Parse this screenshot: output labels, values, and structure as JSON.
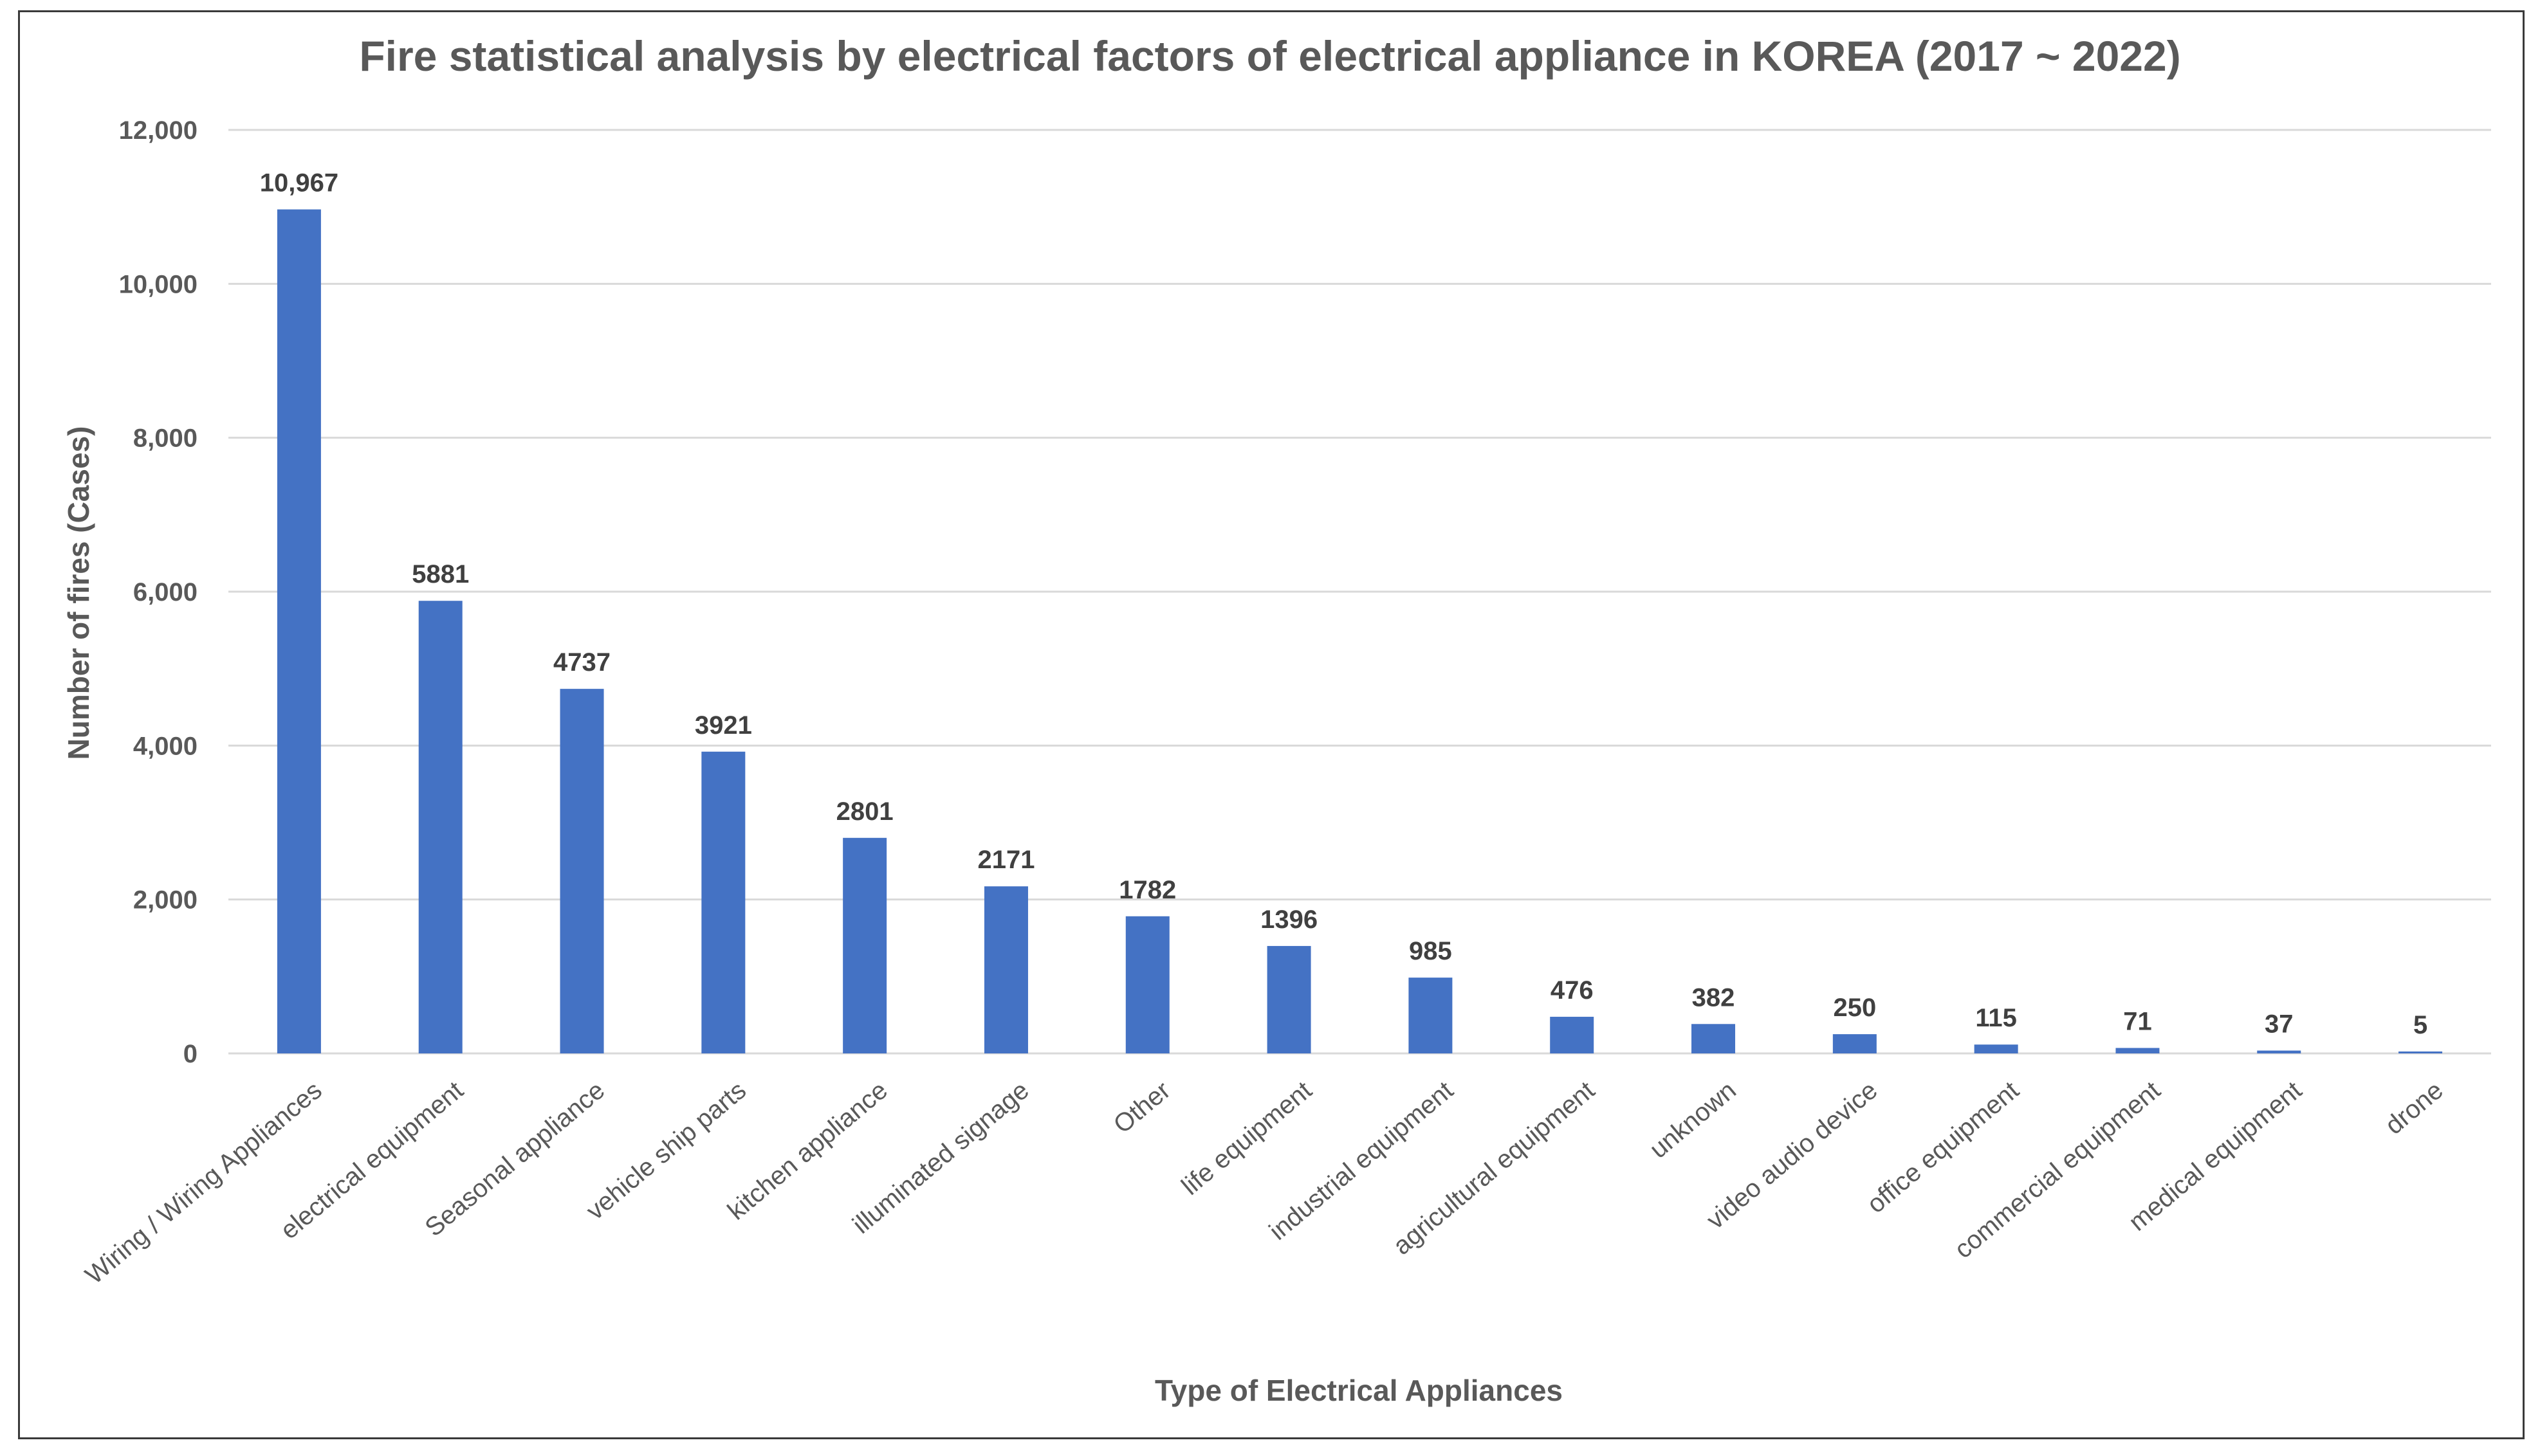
{
  "chart_data": {
    "type": "bar",
    "title": "Fire statistical analysis by electrical factors of electrical appliance in KOREA (2017 ~ 2022)",
    "xlabel": "Type of Electrical Appliances",
    "ylabel": "Number of fires (Cases)",
    "ylim": [
      0,
      12000
    ],
    "yticks": [
      0,
      2000,
      4000,
      6000,
      8000,
      10000,
      12000
    ],
    "ytick_labels": [
      "0",
      "2,000",
      "4,000",
      "6,000",
      "8,000",
      "10,000",
      "12,000"
    ],
    "grid": true,
    "bar_color": "#4472c4",
    "categories": [
      "Wiring / Wiring Appliances",
      "electrical equipment",
      "Seasonal appliance",
      "vehicle ship parts",
      "kitchen appliance",
      "illuminated signage",
      "Other",
      "life equipment",
      "industrial equipment",
      "agricultural equipment",
      "unknown",
      "video audio device",
      "office equipment",
      "commercial equipment",
      "medical equipment",
      "drone"
    ],
    "values": [
      10967,
      5881,
      4737,
      3921,
      2801,
      2171,
      1782,
      1396,
      985,
      476,
      382,
      250,
      115,
      71,
      37,
      5
    ],
    "value_labels": [
      "10,967",
      "5881",
      "4737",
      "3921",
      "2801",
      "2171",
      "1782",
      "1396",
      "985",
      "476",
      "382",
      "250",
      "115",
      "71",
      "37",
      "5"
    ]
  }
}
